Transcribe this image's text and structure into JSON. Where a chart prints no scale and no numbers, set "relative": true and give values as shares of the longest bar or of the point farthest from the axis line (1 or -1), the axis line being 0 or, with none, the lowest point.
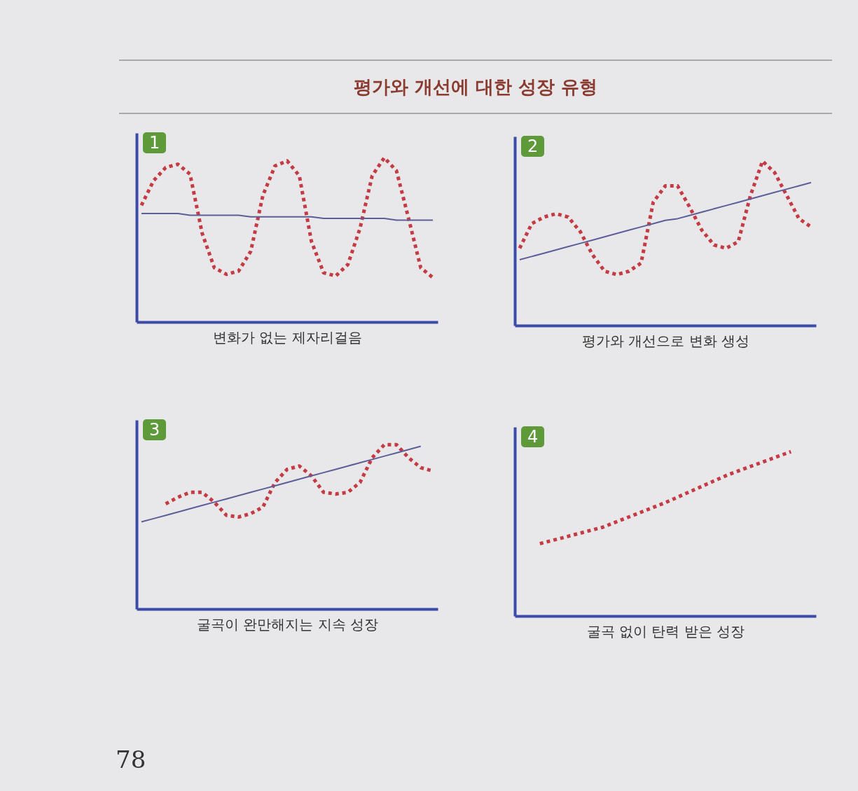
{
  "chart_data": [
    {
      "type": "line",
      "title": "1",
      "xlabel": "변화가 없는 제자리걸음",
      "relative": true,
      "annotations": [
        "평가와 개선에 대한 성장 유형"
      ],
      "categories": [
        null,
        null,
        null,
        null,
        null,
        null,
        null,
        null,
        null,
        null,
        null,
        null,
        null,
        null,
        null,
        null,
        null,
        null,
        null,
        null,
        null,
        null,
        null,
        null,
        null
      ],
      "series": [
        {
          "color": "#c43b43",
          "line_style": "dotted",
          "values": [
            0.71,
            0.86,
            0.94,
            0.96,
            0.9,
            0.54,
            0.33,
            0.29,
            0.31,
            0.43,
            0.77,
            0.95,
            0.98,
            0.89,
            0.49,
            0.3,
            0.28,
            0.35,
            0.57,
            0.89,
            1.0,
            0.92,
            0.63,
            0.33,
            0.27
          ]
        },
        {
          "color": "#5b5e97",
          "line_style": "solid",
          "values": [
            0.66,
            0.66,
            0.66,
            0.66,
            0.65,
            0.65,
            0.65,
            0.65,
            0.65,
            0.64,
            0.64,
            0.64,
            0.64,
            0.64,
            0.64,
            0.63,
            0.63,
            0.63,
            0.63,
            0.63,
            0.63,
            0.62,
            0.62,
            0.62,
            0.62
          ]
        }
      ]
    },
    {
      "type": "line",
      "title": "2",
      "xlabel": "평가와 개선으로 변화 생성",
      "relative": true,
      "categories": [
        null,
        null,
        null,
        null,
        null,
        null,
        null,
        null,
        null,
        null,
        null,
        null,
        null,
        null,
        null,
        null,
        null,
        null,
        null,
        null,
        null,
        null,
        null,
        null,
        null
      ],
      "series": [
        {
          "color": "#c43b43",
          "line_style": "dotted",
          "values": [
            0.47,
            0.62,
            0.66,
            0.68,
            0.66,
            0.57,
            0.43,
            0.33,
            0.31,
            0.33,
            0.38,
            0.75,
            0.85,
            0.85,
            0.72,
            0.58,
            0.49,
            0.47,
            0.51,
            0.79,
            1.0,
            0.93,
            0.79,
            0.65,
            0.6
          ]
        },
        {
          "color": "#5b5e97",
          "line_style": "solid",
          "values": [
            0.4,
            0.42,
            0.44,
            0.46,
            0.48,
            0.5,
            0.52,
            0.54,
            0.56,
            0.58,
            0.6,
            0.62,
            0.64,
            0.65,
            0.67,
            0.69,
            0.71,
            0.73,
            0.75,
            0.77,
            0.79,
            0.81,
            0.83,
            0.85,
            0.87
          ]
        }
      ]
    },
    {
      "type": "line",
      "title": "3",
      "xlabel": "굴곡이 완만해지는 지속 성장",
      "relative": true,
      "annotations": [
        "78"
      ],
      "categories": [
        null,
        null,
        null,
        null,
        null,
        null,
        null,
        null,
        null,
        null,
        null,
        null,
        null,
        null,
        null,
        null,
        null,
        null,
        null,
        null,
        null,
        null,
        null,
        null,
        null
      ],
      "series": [
        {
          "color": "#c43b43",
          "line_style": "dotted",
          "values": [
            null,
            null,
            0.64,
            0.68,
            0.71,
            0.71,
            0.65,
            0.57,
            0.56,
            0.58,
            0.62,
            0.77,
            0.85,
            0.87,
            0.81,
            0.71,
            0.7,
            0.71,
            0.77,
            0.92,
            1.0,
            1.0,
            0.92,
            0.86,
            0.84
          ]
        },
        {
          "color": "#5b5e97",
          "line_style": "solid",
          "values": [
            0.53,
            0.55,
            0.57,
            0.59,
            0.61,
            0.63,
            0.65,
            0.67,
            0.69,
            0.71,
            0.73,
            0.75,
            0.77,
            0.79,
            0.81,
            0.83,
            0.85,
            0.87,
            0.89,
            0.91,
            0.93,
            0.95,
            0.97,
            0.99,
            null
          ]
        }
      ]
    },
    {
      "type": "line",
      "title": "4",
      "xlabel": "굴곡 없이 탄력 받은 성장",
      "relative": true,
      "categories": [
        null,
        null,
        null,
        null,
        null
      ],
      "series": [
        {
          "color": "#c43b43",
          "line_style": "dotted",
          "values": [
            0.44,
            0.54,
            0.69,
            0.86,
            1.0
          ]
        }
      ]
    }
  ]
}
